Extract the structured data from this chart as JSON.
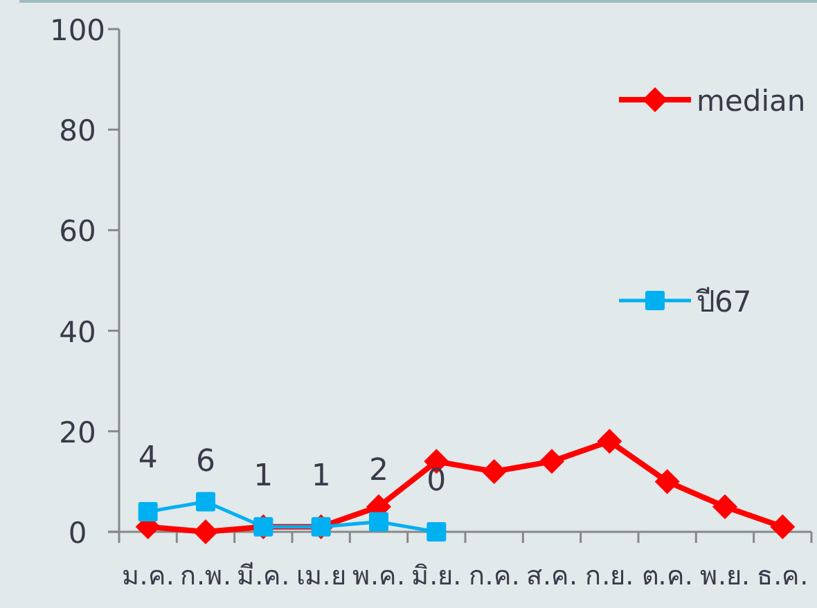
{
  "chart_data": {
    "type": "line",
    "categories": [
      "ม.ค.",
      "ก.พ.",
      "มี.ค.",
      "เม.ย",
      "พ.ค.",
      "มิ.ย.",
      "ก.ค.",
      "ส.ค.",
      "ก.ย.",
      "ต.ค.",
      "พ.ย.",
      "ธ.ค."
    ],
    "ylim": [
      0,
      100
    ],
    "yticks": [
      0,
      20,
      40,
      60,
      80,
      100
    ],
    "legend": "right",
    "grid": false,
    "series": [
      {
        "name": "median",
        "color": "#ff0000",
        "marker": "diamond",
        "values": [
          1,
          0,
          1,
          1,
          5,
          14,
          12,
          14,
          18,
          10,
          5,
          1
        ]
      },
      {
        "name": "ปี67",
        "color": "#00b0f0",
        "marker": "square",
        "values": [
          4,
          6,
          1,
          1,
          2,
          0,
          null,
          null,
          null,
          null,
          null,
          null
        ],
        "value_labels": [
          "4",
          "6",
          "1",
          "1",
          "2",
          "0",
          null,
          null,
          null,
          null,
          null,
          null
        ]
      }
    ]
  }
}
